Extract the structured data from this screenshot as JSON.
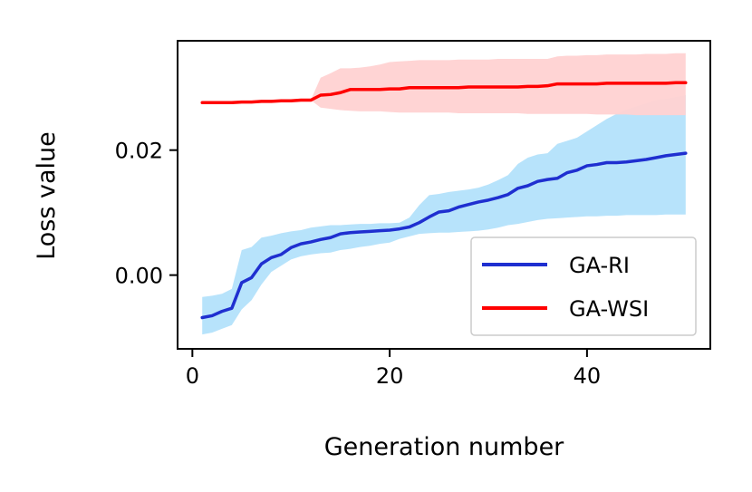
{
  "chart_data": {
    "type": "line",
    "title": "",
    "xlabel": "Generation number",
    "ylabel": "Loss value",
    "xlim": [
      -1.5,
      52.5
    ],
    "ylim": [
      -0.0118,
      0.0375
    ],
    "xticks": [
      0,
      20,
      40
    ],
    "xtick_labels": [
      "0",
      "20",
      "40"
    ],
    "yticks": [
      0.0,
      0.02
    ],
    "ytick_labels": [
      "0.00",
      "0.02"
    ],
    "legend_position": "lower-right",
    "series": [
      {
        "name": "GA-RI",
        "color": "#1f2fd0",
        "band_color": "#b3e2fb",
        "x": [
          1,
          2,
          3,
          4,
          5,
          6,
          7,
          8,
          9,
          10,
          11,
          12,
          13,
          14,
          15,
          16,
          17,
          18,
          19,
          20,
          21,
          22,
          23,
          24,
          25,
          26,
          27,
          28,
          29,
          30,
          31,
          32,
          33,
          34,
          35,
          36,
          37,
          38,
          39,
          40,
          41,
          42,
          43,
          44,
          45,
          46,
          47,
          48,
          49,
          50
        ],
        "y": [
          -0.0068,
          -0.0065,
          -0.0058,
          -0.0053,
          -0.0012,
          -0.0004,
          0.0018,
          0.0028,
          0.0033,
          0.0044,
          0.005,
          0.0053,
          0.0057,
          0.006,
          0.0066,
          0.0068,
          0.0069,
          0.007,
          0.0071,
          0.0072,
          0.0074,
          0.0077,
          0.0084,
          0.0093,
          0.0101,
          0.0103,
          0.0109,
          0.0113,
          0.0117,
          0.012,
          0.0124,
          0.0129,
          0.0139,
          0.0143,
          0.015,
          0.0153,
          0.0155,
          0.0164,
          0.0168,
          0.0175,
          0.0177,
          0.018,
          0.018,
          0.0181,
          0.0183,
          0.0185,
          0.0188,
          0.0191,
          0.0193,
          0.0195
        ],
        "lower": [
          -0.0095,
          -0.0092,
          -0.0086,
          -0.008,
          -0.0055,
          -0.004,
          -0.0015,
          0.0005,
          0.0015,
          0.0025,
          0.003,
          0.0033,
          0.0035,
          0.0036,
          0.004,
          0.0042,
          0.0045,
          0.0047,
          0.005,
          0.0052,
          0.0058,
          0.0062,
          0.0066,
          0.0067,
          0.0068,
          0.0068,
          0.0069,
          0.007,
          0.0071,
          0.0073,
          0.0076,
          0.008,
          0.0082,
          0.0085,
          0.0088,
          0.009,
          0.0091,
          0.0092,
          0.0093,
          0.0094,
          0.0094,
          0.0095,
          0.0095,
          0.0096,
          0.0096,
          0.0096,
          0.0096,
          0.0097,
          0.0097,
          0.0097
        ],
        "upper": [
          -0.0035,
          -0.0033,
          -0.003,
          -0.0022,
          0.004,
          0.0045,
          0.006,
          0.0063,
          0.0067,
          0.007,
          0.0072,
          0.0076,
          0.0078,
          0.008,
          0.008,
          0.0081,
          0.0082,
          0.0082,
          0.0083,
          0.0083,
          0.0084,
          0.0092,
          0.0112,
          0.0128,
          0.013,
          0.0133,
          0.0135,
          0.0137,
          0.014,
          0.0145,
          0.0152,
          0.016,
          0.0178,
          0.0188,
          0.0193,
          0.0195,
          0.021,
          0.0215,
          0.022,
          0.023,
          0.024,
          0.025,
          0.0258,
          0.0265,
          0.027,
          0.0275,
          0.028,
          0.0282,
          0.0285,
          0.0288
        ]
      },
      {
        "name": "GA-WSI",
        "color": "#ff0000",
        "band_color": "#ffd2d2",
        "x": [
          1,
          2,
          3,
          4,
          5,
          6,
          7,
          8,
          9,
          10,
          11,
          12,
          13,
          14,
          15,
          16,
          17,
          18,
          19,
          20,
          21,
          22,
          23,
          24,
          25,
          26,
          27,
          28,
          29,
          30,
          31,
          32,
          33,
          34,
          35,
          36,
          37,
          38,
          39,
          40,
          41,
          42,
          43,
          44,
          45,
          46,
          47,
          48,
          49,
          50
        ],
        "y": [
          0.0276,
          0.0276,
          0.0276,
          0.0276,
          0.0277,
          0.0277,
          0.0278,
          0.0278,
          0.0279,
          0.0279,
          0.028,
          0.028,
          0.0288,
          0.0289,
          0.0292,
          0.0297,
          0.0297,
          0.0297,
          0.0297,
          0.0298,
          0.0298,
          0.03,
          0.03,
          0.03,
          0.03,
          0.03,
          0.03,
          0.0301,
          0.0301,
          0.0301,
          0.0301,
          0.0301,
          0.0301,
          0.0302,
          0.0302,
          0.0303,
          0.0306,
          0.0306,
          0.0306,
          0.0306,
          0.0306,
          0.0307,
          0.0307,
          0.0307,
          0.0307,
          0.0307,
          0.0307,
          0.0307,
          0.0308,
          0.0308
        ],
        "lower": [
          0.0276,
          0.0276,
          0.0276,
          0.0276,
          0.0277,
          0.0277,
          0.0278,
          0.0278,
          0.0279,
          0.0279,
          0.028,
          0.028,
          0.0268,
          0.0266,
          0.0264,
          0.0263,
          0.0262,
          0.0262,
          0.0262,
          0.0261,
          0.026,
          0.026,
          0.026,
          0.026,
          0.026,
          0.026,
          0.0259,
          0.0259,
          0.0259,
          0.0259,
          0.0259,
          0.0259,
          0.0259,
          0.0258,
          0.0258,
          0.0258,
          0.0258,
          0.0258,
          0.0258,
          0.0258,
          0.0257,
          0.0257,
          0.0257,
          0.0257,
          0.0256,
          0.0256,
          0.0256,
          0.0256,
          0.0256,
          0.0256
        ],
        "upper": [
          0.0276,
          0.0276,
          0.0276,
          0.0276,
          0.0277,
          0.0277,
          0.0278,
          0.0278,
          0.0279,
          0.0279,
          0.028,
          0.028,
          0.0316,
          0.0323,
          0.0331,
          0.0331,
          0.0332,
          0.0334,
          0.0337,
          0.0341,
          0.0342,
          0.0343,
          0.0344,
          0.0344,
          0.0344,
          0.0344,
          0.0345,
          0.0345,
          0.0345,
          0.0345,
          0.0346,
          0.0346,
          0.0346,
          0.0346,
          0.0346,
          0.0346,
          0.035,
          0.0351,
          0.0351,
          0.0352,
          0.0352,
          0.0353,
          0.0353,
          0.0353,
          0.0353,
          0.0354,
          0.0354,
          0.0354,
          0.0355,
          0.0355
        ]
      }
    ]
  }
}
